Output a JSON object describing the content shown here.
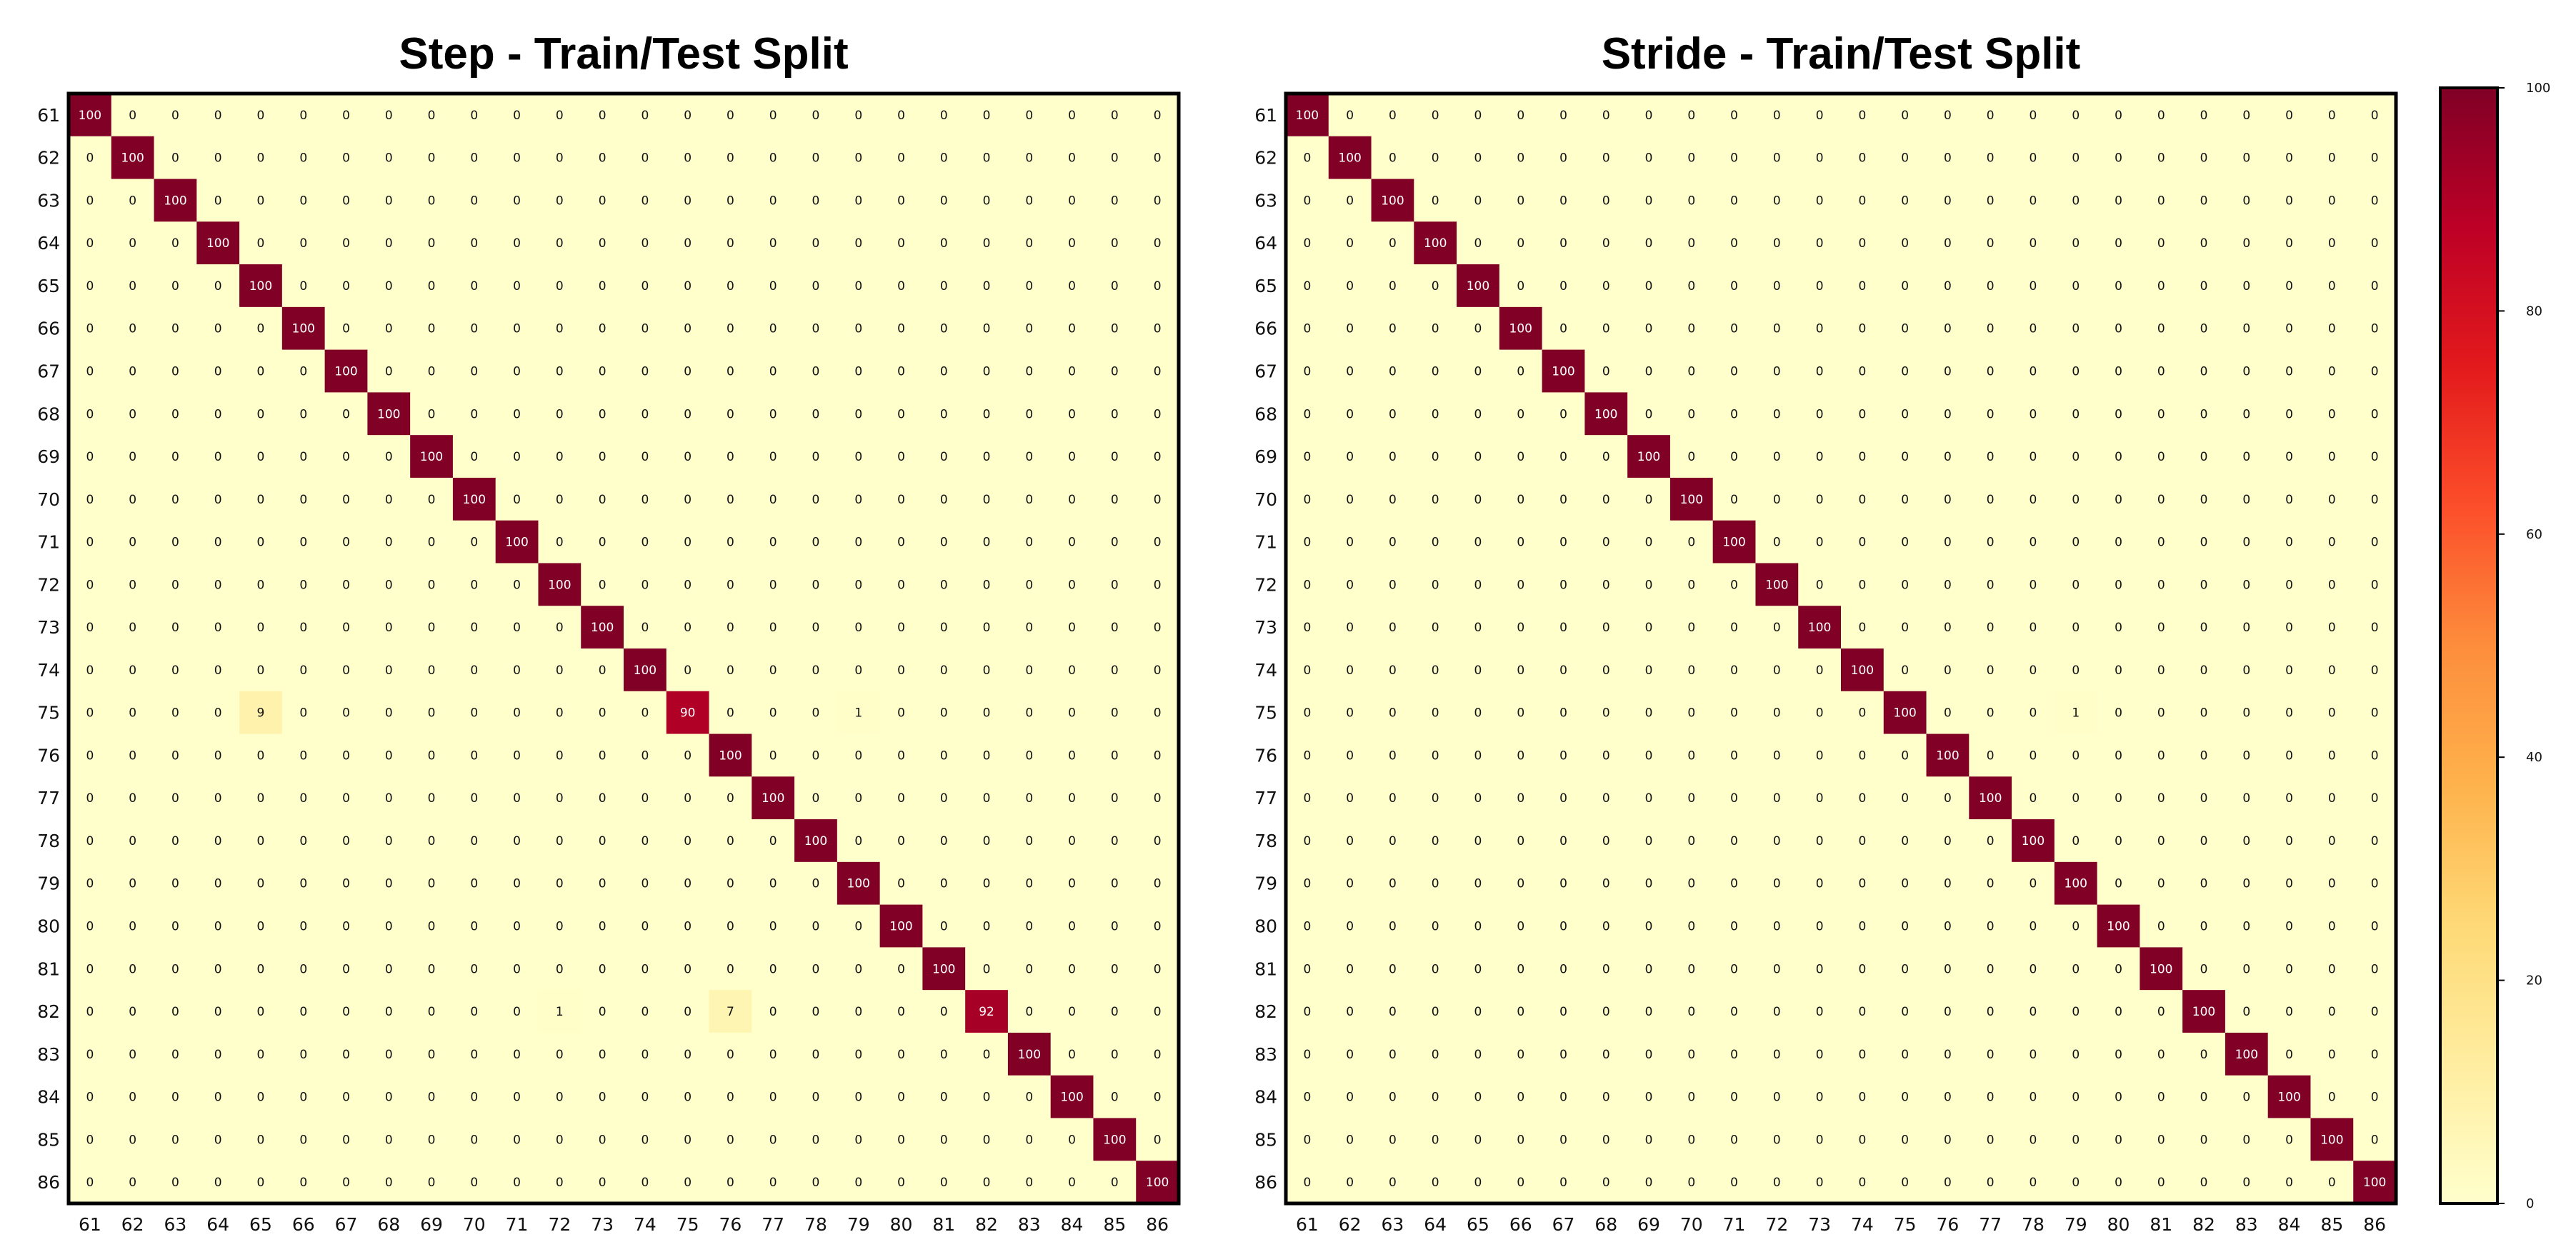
{
  "chart_data": [
    {
      "type": "heatmap",
      "title": "Step - Train/Test Split",
      "labels": [
        "61",
        "62",
        "63",
        "64",
        "65",
        "66",
        "67",
        "68",
        "69",
        "70",
        "71",
        "72",
        "73",
        "74",
        "75",
        "76",
        "77",
        "78",
        "79",
        "80",
        "81",
        "82",
        "83",
        "84",
        "85",
        "86"
      ],
      "diagonal": 100,
      "off_diagonal": 0,
      "exceptions": [
        {
          "row": "75",
          "col": "65",
          "value": 9
        },
        {
          "row": "75",
          "col": "75",
          "value": 90
        },
        {
          "row": "75",
          "col": "79",
          "value": 1
        },
        {
          "row": "82",
          "col": "72",
          "value": 1
        },
        {
          "row": "82",
          "col": "76",
          "value": 7
        },
        {
          "row": "82",
          "col": "82",
          "value": 92
        }
      ],
      "vmin": 0,
      "vmax": 100
    },
    {
      "type": "heatmap",
      "title": "Stride - Train/Test Split",
      "labels": [
        "61",
        "62",
        "63",
        "64",
        "65",
        "66",
        "67",
        "68",
        "69",
        "70",
        "71",
        "72",
        "73",
        "74",
        "75",
        "76",
        "77",
        "78",
        "79",
        "80",
        "81",
        "82",
        "83",
        "84",
        "85",
        "86"
      ],
      "diagonal": 100,
      "off_diagonal": 0,
      "exceptions": [
        {
          "row": "75",
          "col": "79",
          "value": 1
        }
      ],
      "vmin": 0,
      "vmax": 100
    }
  ],
  "colorbar": {
    "ticks": [
      0,
      20,
      40,
      60,
      80,
      100
    ],
    "colormap": "YlOrRd",
    "colors": [
      "#ffffcc",
      "#ffeda0",
      "#fed976",
      "#feb24c",
      "#fd8d3c",
      "#fc4e2a",
      "#e31a1c",
      "#bd0026",
      "#800026"
    ]
  }
}
